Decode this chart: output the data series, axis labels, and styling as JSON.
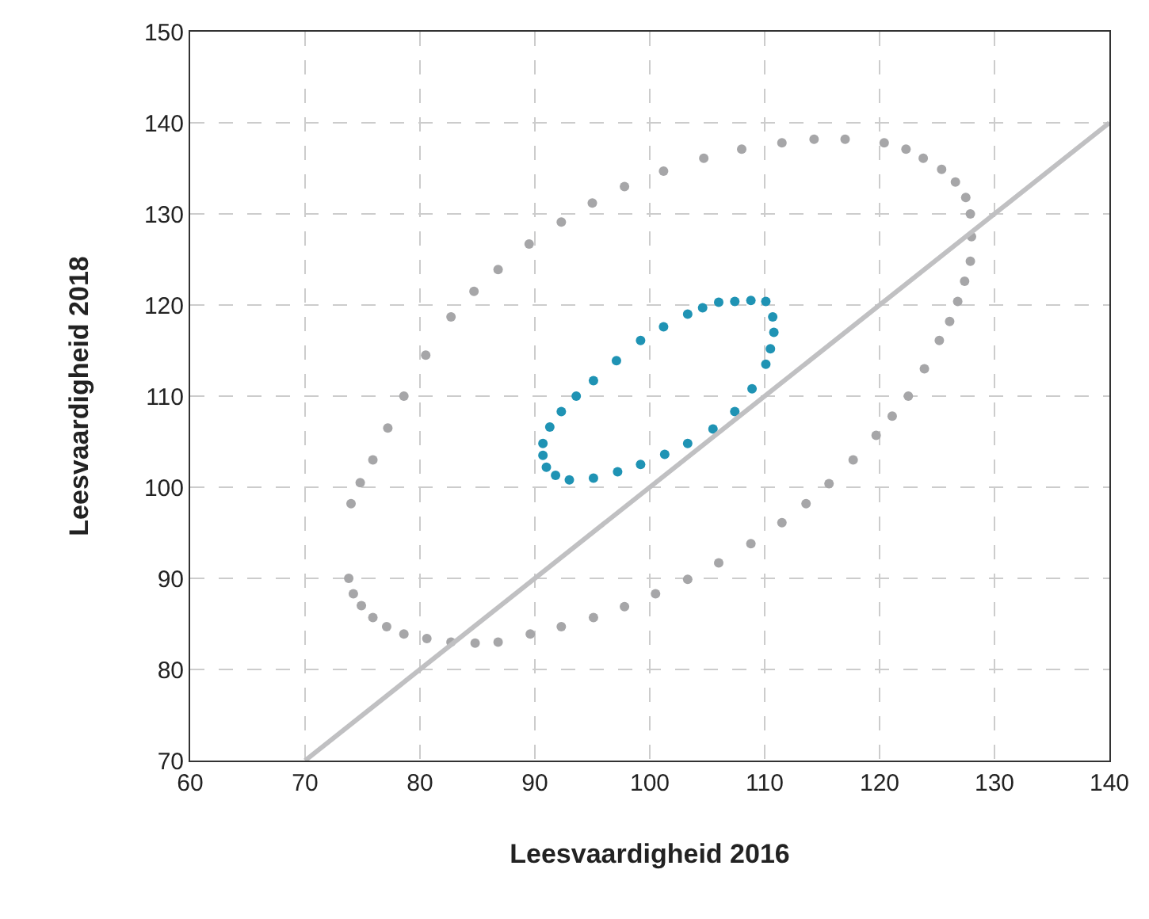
{
  "chart_data": {
    "type": "scatter",
    "xlabel": "Leesvaardigheid 2016",
    "ylabel": "Leesvaardigheid 2018",
    "xlim": [
      60,
      140
    ],
    "ylim": [
      70,
      150
    ],
    "xticks": [
      60,
      70,
      80,
      90,
      100,
      110,
      120,
      130,
      140
    ],
    "yticks": [
      70,
      80,
      90,
      100,
      110,
      120,
      130,
      140,
      150
    ],
    "grid": true,
    "marker": "circle",
    "series": [
      {
        "color": "#a6a6a8",
        "x": [
          74.0,
          74.8,
          75.9,
          77.2,
          78.6,
          80.5,
          82.7,
          84.7,
          86.8,
          89.5,
          92.3,
          95.0,
          97.8,
          101.2,
          104.7,
          108.0,
          111.5,
          114.3,
          117.0,
          120.4,
          122.3,
          123.8,
          125.4,
          126.6,
          127.5,
          127.9,
          128.0,
          127.9,
          127.4,
          126.8,
          126.1,
          125.2,
          123.9,
          122.5,
          121.1,
          119.7,
          117.7,
          115.6,
          113.6,
          111.5,
          108.8,
          106.0,
          103.3,
          100.5,
          97.8,
          95.1,
          92.3,
          89.6,
          86.8,
          84.8,
          82.7,
          80.6,
          78.6,
          77.1,
          75.9,
          74.9,
          74.2,
          73.8
        ],
        "values": [
          98.2,
          100.5,
          103,
          106.5,
          110,
          114.5,
          118.7,
          121.5,
          123.9,
          126.7,
          129.1,
          131.2,
          133,
          134.7,
          136.1,
          137.1,
          137.8,
          138.2,
          138.2,
          137.8,
          137.1,
          136.1,
          134.9,
          133.5,
          131.8,
          130,
          127.5,
          124.8,
          122.6,
          120.4,
          118.2,
          116.1,
          113,
          110,
          107.8,
          105.7,
          103,
          100.4,
          98.2,
          96.1,
          93.8,
          91.7,
          89.9,
          88.3,
          86.9,
          85.7,
          84.7,
          83.9,
          83,
          82.9,
          83,
          83.4,
          83.9,
          84.7,
          85.7,
          87,
          88.3,
          90
        ]
      },
      {
        "color": "#1f93b4",
        "x": [
          106.0,
          107.4,
          108.8,
          110.1,
          110.7,
          110.8,
          110.5,
          110.1,
          108.9,
          107.4,
          105.5,
          103.3,
          101.3,
          99.2,
          97.2,
          95.1,
          93.0,
          91.8,
          91.0,
          90.7,
          90.7,
          91.3,
          92.3,
          93.6,
          95.1,
          97.1,
          99.2,
          101.2,
          103.3,
          104.6
        ],
        "values": [
          120.3,
          120.4,
          120.5,
          120.4,
          118.7,
          117,
          115.2,
          113.5,
          110.8,
          108.3,
          106.4,
          104.8,
          103.6,
          102.5,
          101.7,
          101,
          100.8,
          101.3,
          102.2,
          103.5,
          104.8,
          106.6,
          108.3,
          110,
          111.7,
          113.9,
          116.1,
          117.6,
          119,
          119.7
        ]
      },
      {
        "color": "#c0c0c2",
        "x": [
          70,
          140
        ],
        "values": [
          70,
          140
        ],
        "type": "line",
        "marker": "none",
        "line_style": "solid"
      }
    ]
  }
}
